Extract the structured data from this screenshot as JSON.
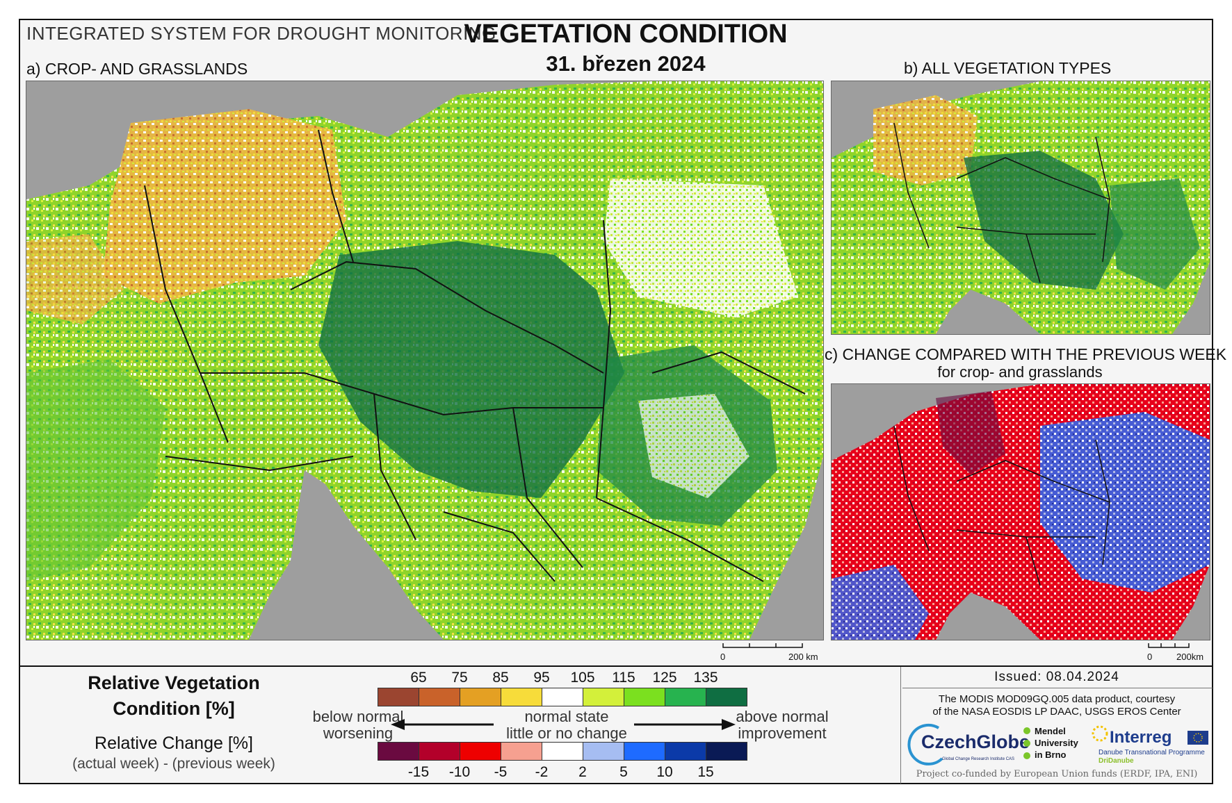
{
  "header": {
    "system": "INTEGRATED SYSTEM FOR DROUGHT MONITORING",
    "title": "VEGETATION CONDITION",
    "date": "31. březen 2024"
  },
  "panels": {
    "a": {
      "label": "a) CROP- AND GRASSLANDS"
    },
    "b": {
      "label": "b) ALL VEGETATION TYPES"
    },
    "c": {
      "label": "c) CHANGE COMPARED WITH THE PREVIOUS WEEK",
      "sublabel": "for crop- and grasslands"
    }
  },
  "scalebars": {
    "a": {
      "zero": "0",
      "end": "200 km"
    },
    "c": {
      "zero": "0",
      "end": "200km"
    }
  },
  "legend": {
    "rvc_title_line1": "Relative Vegetation",
    "rvc_title_line2": "Condition [%]",
    "rc_title": "Relative Change [%]",
    "rc_subtitle": "(actual week) - (previous week)",
    "rvc_ticks": [
      "65",
      "75",
      "85",
      "95",
      "105",
      "115",
      "125",
      "135"
    ],
    "rvc_colors": [
      "#9b4530",
      "#c9622a",
      "#e4a023",
      "#f7dc3a",
      "#ffffff",
      "#d3f03a",
      "#7be01f",
      "#27b34f",
      "#0f6e42"
    ],
    "rc_ticks": [
      "-15",
      "-10",
      "-5",
      "-2",
      "2",
      "5",
      "10",
      "15"
    ],
    "rc_colors": [
      "#6a0a40",
      "#b3002a",
      "#ee0000",
      "#f6a090",
      "#ffffff",
      "#a6bdf2",
      "#1e6bff",
      "#0b3aa8",
      "#0a1a55"
    ],
    "below_line1": "below normal",
    "below_line2": "worsening",
    "normal_line1": "normal state",
    "normal_line2": "little or no change",
    "above_line1": "above normal",
    "above_line2": "improvement"
  },
  "info": {
    "issued": "Issued: 08.04.2024",
    "source_line1": "The MODIS MOD09GQ.005 data product, courtesy",
    "source_line2": "of the NASA EOSDIS LP DAAC, USGS EROS Center",
    "czechglobe": "CzechGlobe",
    "czechglobe_sub": "Global Change Research Institute CAS",
    "mendel_line1": "Mendel",
    "mendel_line2": "University",
    "mendel_line3": "in Brno",
    "interreg": "Interreg",
    "interreg_sub": "Danube Transnational Programme",
    "dridanube": "DriDanube",
    "funding": "Project co-funded by European Union funds (ERDF, IPA, ENI)"
  }
}
